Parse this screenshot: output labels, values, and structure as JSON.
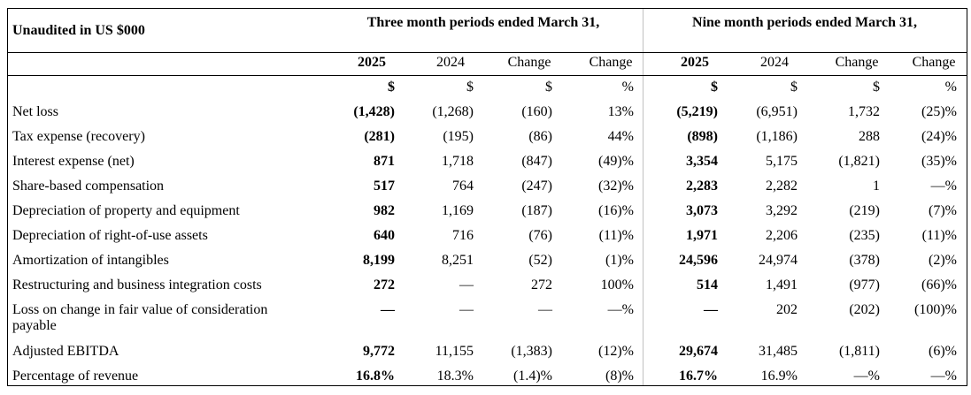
{
  "table": {
    "caption": "Unaudited in US $000",
    "group_three": "Three month periods ended March 31,",
    "group_nine": "Nine month periods ended March 31,",
    "columns": [
      "2025",
      "2024",
      "Change",
      "Change",
      "2025",
      "2024",
      "Change",
      "Change"
    ],
    "units": [
      "$",
      "$",
      "$",
      "%",
      "$",
      "$",
      "$",
      "%"
    ],
    "rows": [
      {
        "label": "Net loss",
        "cells": [
          "(1,428)",
          "(1,268)",
          "(160)",
          "13%",
          "(5,219)",
          "(6,951)",
          "1,732",
          "(25)%"
        ]
      },
      {
        "label": "Tax expense (recovery)",
        "cells": [
          "(281)",
          "(195)",
          "(86)",
          "44%",
          "(898)",
          "(1,186)",
          "288",
          "(24)%"
        ]
      },
      {
        "label": "Interest expense (net)",
        "cells": [
          "871",
          "1,718",
          "(847)",
          "(49)%",
          "3,354",
          "5,175",
          "(1,821)",
          "(35)%"
        ]
      },
      {
        "label": "Share-based compensation",
        "cells": [
          "517",
          "764",
          "(247)",
          "(32)%",
          "2,283",
          "2,282",
          "1",
          "—%"
        ]
      },
      {
        "label": "Depreciation of property and equipment",
        "cells": [
          "982",
          "1,169",
          "(187)",
          "(16)%",
          "3,073",
          "3,292",
          "(219)",
          "(7)%"
        ]
      },
      {
        "label": "Depreciation of right-of-use assets",
        "cells": [
          "640",
          "716",
          "(76)",
          "(11)%",
          "1,971",
          "2,206",
          "(235)",
          "(11)%"
        ]
      },
      {
        "label": "Amortization of intangibles",
        "cells": [
          "8,199",
          "8,251",
          "(52)",
          "(1)%",
          "24,596",
          "24,974",
          "(378)",
          "(2)%"
        ]
      },
      {
        "label": "Restructuring and business integration costs",
        "cells": [
          "272",
          "—",
          "272",
          "100%",
          "514",
          "1,491",
          "(977)",
          "(66)%"
        ]
      },
      {
        "label": "Loss on change in fair value of consideration payable",
        "label_line1": "Loss on change in fair value of consideration",
        "label_line2": "payable",
        "cells": [
          "—",
          "—",
          "—",
          "—%",
          "—",
          "202",
          "(202)",
          "(100)%"
        ]
      },
      {
        "label": "Adjusted EBITDA",
        "cells": [
          "9,772",
          "11,155",
          "(1,383)",
          "(12)%",
          "29,674",
          "31,485",
          "(1,811)",
          "(6)%"
        ]
      },
      {
        "label": "Percentage of revenue",
        "cells": [
          "16.8%",
          "18.3%",
          "(1.4)%",
          "(8)%",
          "16.7%",
          "16.9%",
          "—%",
          "—%"
        ]
      }
    ]
  }
}
